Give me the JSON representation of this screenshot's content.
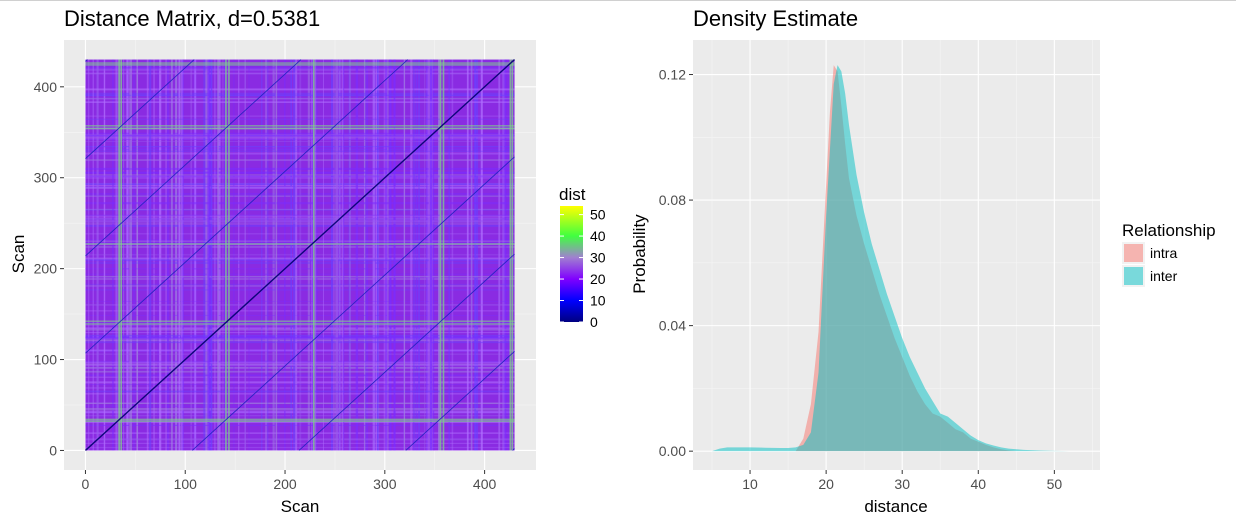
{
  "chart_data": [
    {
      "type": "heatmap",
      "title": "Distance Matrix, d=0.5381",
      "xlabel": "Scan",
      "ylabel": "Scan",
      "xlim": [
        0,
        430
      ],
      "ylim": [
        0,
        430
      ],
      "xticks": [
        "0",
        "100",
        "200",
        "300",
        "400"
      ],
      "yticks": [
        "0",
        "100",
        "200",
        "300",
        "400"
      ],
      "diagonal_period": 107,
      "colorbar": {
        "title": "dist",
        "range": [
          0,
          54
        ],
        "ticks": [
          "0",
          "10",
          "20",
          "30",
          "40",
          "50"
        ],
        "colors": [
          {
            "value": 0,
            "color": "#000080"
          },
          {
            "value": 10,
            "color": "#0000ff"
          },
          {
            "value": 20,
            "color": "#8000ff"
          },
          {
            "value": 30,
            "color": "#a080d0"
          },
          {
            "value": 40,
            "color": "#40ff40"
          },
          {
            "value": 54,
            "color": "#ffff00"
          }
        ]
      },
      "background": "#8a2be2",
      "grid": true
    },
    {
      "type": "area",
      "title": "Density Estimate",
      "xlabel": "distance",
      "ylabel": "Probability",
      "xlim": [
        2.5,
        56
      ],
      "ylim": [
        -0.006,
        0.131
      ],
      "xticks": [
        "10",
        "20",
        "30",
        "40",
        "50"
      ],
      "yticks": [
        "0.00",
        "0.04",
        "0.08",
        "0.12"
      ],
      "legend": {
        "title": "Relationship",
        "placement": "right"
      },
      "series": [
        {
          "name": "intra",
          "color": "#f8766d",
          "x": [
            16,
            17,
            18,
            19,
            20,
            20.5,
            21,
            21.5,
            22,
            22.5,
            23,
            24,
            25,
            26,
            27,
            28,
            29,
            30,
            31,
            32,
            33,
            34,
            35,
            36,
            37,
            38,
            39,
            40,
            41,
            42,
            43,
            44,
            45
          ],
          "y": [
            0.0,
            0.004,
            0.015,
            0.038,
            0.085,
            0.108,
            0.123,
            0.121,
            0.11,
            0.098,
            0.087,
            0.075,
            0.066,
            0.058,
            0.05,
            0.043,
            0.036,
            0.03,
            0.024,
            0.019,
            0.015,
            0.012,
            0.011,
            0.009,
            0.007,
            0.006,
            0.004,
            0.003,
            0.002,
            0.0012,
            0.0006,
            0.0002,
            0.0
          ]
        },
        {
          "name": "inter",
          "color": "#00bfc4",
          "x": [
            5,
            6,
            7,
            8,
            10,
            12,
            14,
            15,
            16,
            17,
            18,
            19,
            20,
            21,
            21.5,
            22,
            22.5,
            23,
            24,
            25,
            26,
            27,
            28,
            29,
            30,
            31,
            32,
            33,
            34,
            35,
            36,
            37,
            38,
            39,
            40,
            41,
            42,
            43,
            44,
            45,
            46,
            48,
            50,
            52
          ],
          "y": [
            0.0,
            0.0008,
            0.0012,
            0.0012,
            0.0012,
            0.0011,
            0.001,
            0.001,
            0.0012,
            0.002,
            0.006,
            0.025,
            0.075,
            0.117,
            0.123,
            0.121,
            0.114,
            0.104,
            0.088,
            0.076,
            0.066,
            0.058,
            0.05,
            0.043,
            0.036,
            0.03,
            0.025,
            0.02,
            0.016,
            0.012,
            0.011,
            0.009,
            0.007,
            0.005,
            0.0035,
            0.0025,
            0.0018,
            0.0012,
            0.0008,
            0.0006,
            0.0004,
            0.0002,
            0.0001,
            0.0
          ]
        }
      ]
    }
  ]
}
